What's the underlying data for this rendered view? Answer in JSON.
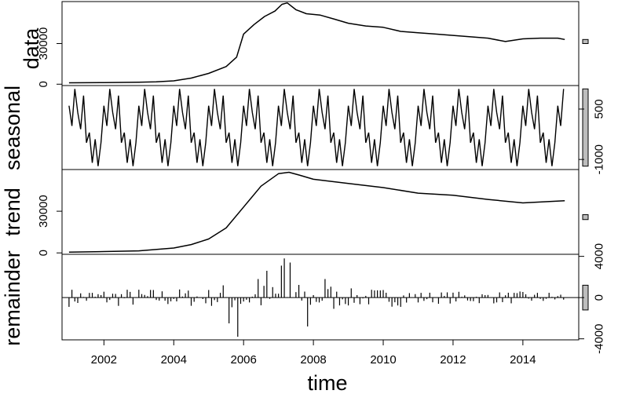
{
  "chart_data": {
    "type": "line",
    "xlabel": "time",
    "xlim": [
      2000.8,
      2015.6
    ],
    "x_ticks": [
      2002,
      2004,
      2006,
      2008,
      2010,
      2012,
      2014
    ],
    "x_tick_labels": [
      "2002",
      "2004",
      "2006",
      "2008",
      "2010",
      "2012",
      "2014"
    ],
    "grid": false,
    "panels": [
      {
        "name": "data",
        "ylim": [
          -1000,
          61000
        ],
        "y_ticks": [
          0,
          30000
        ],
        "y_tick_labels": [
          "0",
          "30000"
        ],
        "y_axis_side": "left",
        "scale_bar": [
          30000,
          33000
        ],
        "series": {
          "x": [
            2001.0,
            2002.0,
            2003.0,
            2003.5,
            2004.0,
            2004.5,
            2005.0,
            2005.5,
            2005.8,
            2006.0,
            2006.3,
            2006.6,
            2006.9,
            2007.1,
            2007.25,
            2007.5,
            2007.8,
            2008.2,
            2008.6,
            2009.0,
            2009.5,
            2010.0,
            2010.5,
            2011.0,
            2011.5,
            2012.0,
            2012.5,
            2013.0,
            2013.5,
            2014.0,
            2014.5,
            2015.0,
            2015.2
          ],
          "y": [
            1000,
            1200,
            1500,
            1800,
            2500,
            4500,
            8000,
            13000,
            20000,
            37000,
            44000,
            50000,
            54000,
            59000,
            60000,
            55000,
            52000,
            51000,
            48000,
            45000,
            43000,
            42000,
            39000,
            38000,
            37000,
            36000,
            35000,
            34000,
            31500,
            33500,
            34000,
            34000,
            33000
          ]
        }
      },
      {
        "name": "seasonal",
        "ylim": [
          -1300,
          1200
        ],
        "y_ticks": [
          -1000,
          500
        ],
        "y_tick_labels": [
          "-1000",
          "500"
        ],
        "y_axis_side": "right",
        "scale_bar": [
          -1200,
          1100
        ],
        "pattern_months": [
          1,
          2,
          3,
          4,
          5,
          6,
          7,
          8,
          9,
          10,
          11,
          12
        ],
        "pattern_values": [
          600,
          0,
          1100,
          400,
          -100,
          900,
          -500,
          -200,
          -1100,
          -400,
          -1200,
          -500
        ],
        "series": {
          "x_start": 2001.0,
          "x_end": 2015.17,
          "step": 0.08333
        }
      },
      {
        "name": "trend",
        "ylim": [
          -1000,
          60000
        ],
        "y_ticks": [
          0,
          30000
        ],
        "y_tick_labels": [
          "0",
          "30000"
        ],
        "y_axis_side": "left",
        "scale_bar": [
          24000,
          27500
        ],
        "series": {
          "x": [
            2001.0,
            2002.0,
            2003.0,
            2004.0,
            2004.5,
            2005.0,
            2005.5,
            2006.0,
            2006.5,
            2007.0,
            2007.3,
            2007.6,
            2008.0,
            2009.0,
            2010.0,
            2011.0,
            2012.0,
            2013.0,
            2014.0,
            2015.2
          ],
          "y": [
            500,
            1000,
            1500,
            3500,
            6000,
            10000,
            18000,
            33000,
            48000,
            57000,
            58000,
            56000,
            53000,
            50000,
            47000,
            43000,
            41500,
            38500,
            36000,
            37500
          ]
        }
      },
      {
        "name": "remainder",
        "ylim": [
          -4100,
          4200
        ],
        "y_ticks": [
          -4000,
          0,
          4000
        ],
        "y_tick_labels": [
          "-4000",
          "0",
          "4000"
        ],
        "y_axis_side": "right",
        "scale_bar": [
          -1200,
          1200
        ],
        "bar_style": "vertical-lines",
        "spikes": [
          {
            "x": 2005.8,
            "y": -3800
          },
          {
            "x": 2005.6,
            "y": -2500
          },
          {
            "x": 2006.7,
            "y": 2600
          },
          {
            "x": 2007.05,
            "y": 3100
          },
          {
            "x": 2007.2,
            "y": 3800
          },
          {
            "x": 2007.3,
            "y": 3400
          },
          {
            "x": 2007.8,
            "y": -2800
          },
          {
            "x": 2008.3,
            "y": 1800
          },
          {
            "x": 2006.4,
            "y": 1800
          }
        ]
      }
    ]
  }
}
